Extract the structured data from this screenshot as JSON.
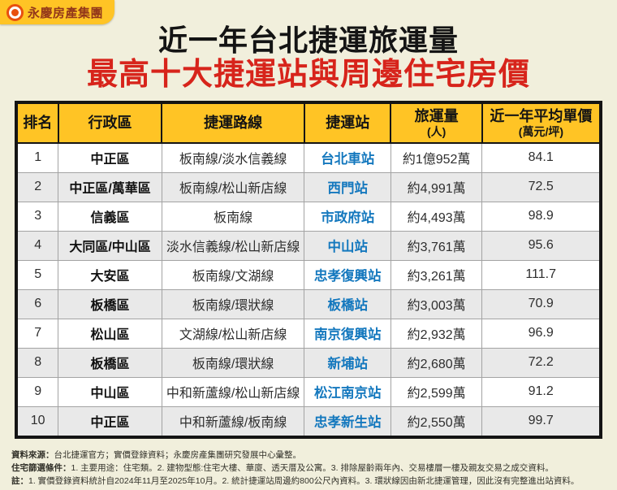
{
  "logo": {
    "icon": "yongqing-circle-logo",
    "text": "永慶房產集團"
  },
  "title": {
    "line1_prefix": "近一年台北捷運",
    "line1_emphasis": "旅運量",
    "line2": "最高十大捷運站與周邊住宅房價"
  },
  "colors": {
    "accent_yellow": "#FFC425",
    "title_red": "#D7241B",
    "station_blue": "#1478BE",
    "background_cream": "#F1EFDC",
    "row_stripe_gray": "#E9E9E9",
    "logo_orange": "#E8500F"
  },
  "table": {
    "headers": [
      {
        "label": "排名",
        "sub": ""
      },
      {
        "label": "行政區",
        "sub": ""
      },
      {
        "label": "捷運路線",
        "sub": ""
      },
      {
        "label": "捷運站",
        "sub": ""
      },
      {
        "label": "旅運量",
        "sub": "(人)"
      },
      {
        "label": "近一年平均單價",
        "sub": "(萬元/坪)"
      }
    ],
    "rows": [
      {
        "rank": "1",
        "district": "中正區",
        "line": "板南線/淡水信義線",
        "station": "台北車站",
        "ridership": "約1億952萬",
        "price": "84.1"
      },
      {
        "rank": "2",
        "district": "中正區/萬華區",
        "line": "板南線/松山新店線",
        "station": "西門站",
        "ridership": "約4,991萬",
        "price": "72.5"
      },
      {
        "rank": "3",
        "district": "信義區",
        "line": "板南線",
        "station": "市政府站",
        "ridership": "約4,493萬",
        "price": "98.9"
      },
      {
        "rank": "4",
        "district": "大同區/中山區",
        "line": "淡水信義線/松山新店線",
        "station": "中山站",
        "ridership": "約3,761萬",
        "price": "95.6"
      },
      {
        "rank": "5",
        "district": "大安區",
        "line": "板南線/文湖線",
        "station": "忠孝復興站",
        "ridership": "約3,261萬",
        "price": "111.7"
      },
      {
        "rank": "6",
        "district": "板橋區",
        "line": "板南線/環狀線",
        "station": "板橋站",
        "ridership": "約3,003萬",
        "price": "70.9"
      },
      {
        "rank": "7",
        "district": "松山區",
        "line": "文湖線/松山新店線",
        "station": "南京復興站",
        "ridership": "約2,932萬",
        "price": "96.9"
      },
      {
        "rank": "8",
        "district": "板橋區",
        "line": "板南線/環狀線",
        "station": "新埔站",
        "ridership": "約2,680萬",
        "price": "72.2"
      },
      {
        "rank": "9",
        "district": "中山區",
        "line": "中和新蘆線/松山新店線",
        "station": "松江南京站",
        "ridership": "約2,599萬",
        "price": "91.2"
      },
      {
        "rank": "10",
        "district": "中正區",
        "line": "中和新蘆線/板南線",
        "station": "忠孝新生站",
        "ridership": "約2,550萬",
        "price": "99.7"
      }
    ]
  },
  "footnotes": [
    {
      "label": "資料來源：",
      "text": "台北捷運官方；實價登錄資料；永慶房產集團研究發展中心彙整。"
    },
    {
      "label": "住宅篩選條件：",
      "text": "1. 主要用途：住宅類。2. 建物型態:住宅大樓、華廈、透天厝及公寓。3. 排除屋齡兩年內、交易樓層一樓及親友交易之成交資料。"
    },
    {
      "label": "註：",
      "text": "1. 實價登錄資料統計自2024年11月至2025年10月。2. 統計捷運站周邊約800公尺內資料。3. 環狀線因由新北捷運管理，因此沒有完整進出站資料。"
    }
  ],
  "chart_data": {
    "type": "table",
    "title": "近一年台北捷運旅運量最高十大捷運站與周邊住宅房價",
    "columns": [
      "排名",
      "行政區",
      "捷運路線",
      "捷運站",
      "旅運量(人)",
      "近一年平均單價(萬元/坪)"
    ],
    "rows": [
      [
        "1",
        "中正區",
        "板南線/淡水信義線",
        "台北車站",
        "約1億952萬",
        84.1
      ],
      [
        "2",
        "中正區/萬華區",
        "板南線/松山新店線",
        "西門站",
        "約4,991萬",
        72.5
      ],
      [
        "3",
        "信義區",
        "板南線",
        "市政府站",
        "約4,493萬",
        98.9
      ],
      [
        "4",
        "大同區/中山區",
        "淡水信義線/松山新店線",
        "中山站",
        "約3,761萬",
        95.6
      ],
      [
        "5",
        "大安區",
        "板南線/文湖線",
        "忠孝復興站",
        "約3,261萬",
        111.7
      ],
      [
        "6",
        "板橋區",
        "板南線/環狀線",
        "板橋站",
        "約3,003萬",
        70.9
      ],
      [
        "7",
        "松山區",
        "文湖線/松山新店線",
        "南京復興站",
        "約2,932萬",
        96.9
      ],
      [
        "8",
        "板橋區",
        "板南線/環狀線",
        "新埔站",
        "約2,680萬",
        72.2
      ],
      [
        "9",
        "中山區",
        "中和新蘆線/松山新店線",
        "松江南京站",
        "約2,599萬",
        91.2
      ],
      [
        "10",
        "中正區",
        "中和新蘆線/板南線",
        "忠孝新生站",
        "約2,550萬",
        99.7
      ]
    ]
  }
}
